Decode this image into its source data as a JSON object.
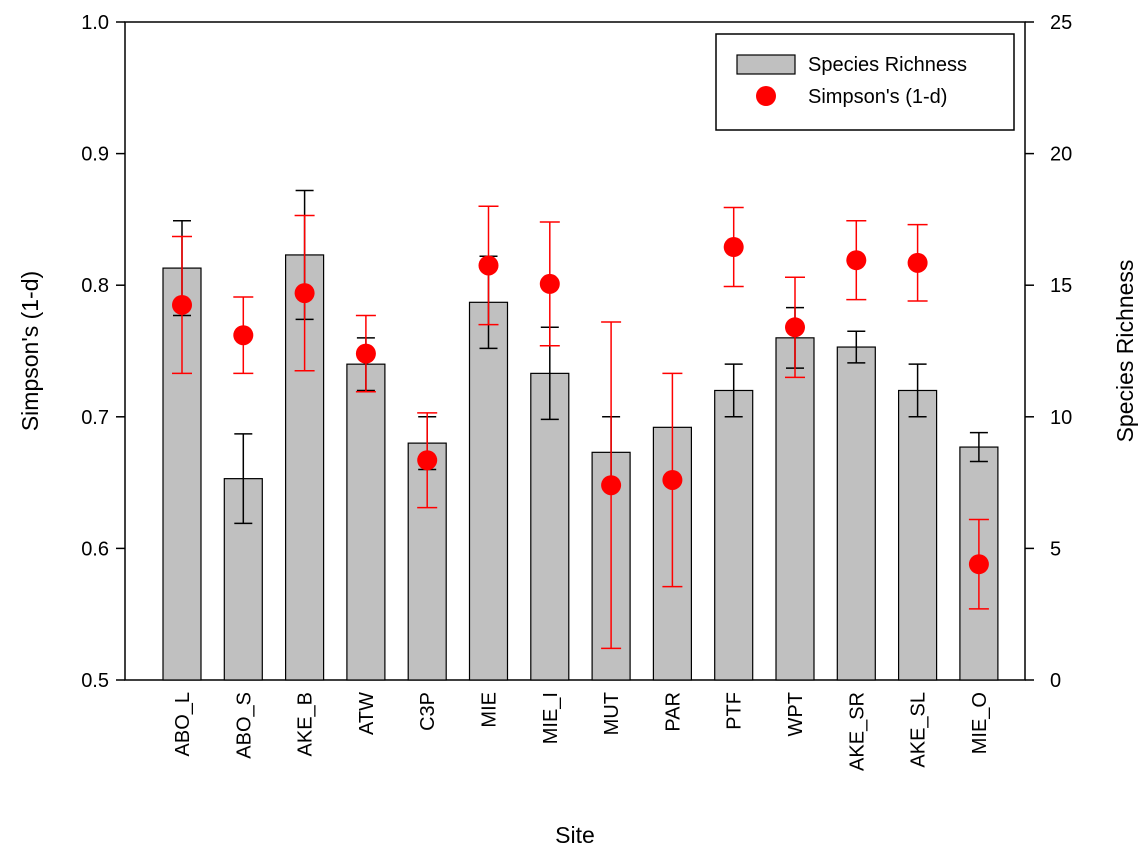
{
  "chart_data": {
    "type": "bar",
    "xlabel": "Site",
    "ylabel_left": "Simpson's (1-d)",
    "ylabel_right": "Species Richness",
    "ylim_left": [
      0.5,
      1.0
    ],
    "ylim_right": [
      0,
      25
    ],
    "yticks_left": [
      "0.5",
      "0.6",
      "0.7",
      "0.8",
      "0.9",
      "1.0"
    ],
    "yticks_right": [
      "0",
      "5",
      "10",
      "15",
      "20",
      "25"
    ],
    "grid": false,
    "legend_position": "top-right",
    "categories": [
      "ABO_L",
      "ABO_S",
      "AKE_B",
      "ATW",
      "C3P",
      "MIE",
      "MIE_I",
      "MUT",
      "PAR",
      "PTF",
      "WPT",
      "AKE_SR",
      "AKE_SL",
      "MIE_O"
    ],
    "series": [
      {
        "name": "Species Richness",
        "type": "bar",
        "axis": "right",
        "color": "#c0c0c0",
        "values": [
          15.65,
          7.65,
          16.15,
          12.0,
          9.0,
          14.35,
          11.65,
          8.65,
          9.6,
          11.0,
          13.0,
          12.65,
          11.0,
          8.85
        ],
        "error": [
          1.8,
          1.7,
          2.45,
          1.0,
          1.0,
          1.75,
          1.75,
          1.35,
          0,
          1.0,
          1.15,
          0.6,
          1.0,
          0.55
        ]
      },
      {
        "name": "Simpson's (1-d)",
        "type": "scatter",
        "axis": "left",
        "color": "#ff0000",
        "values": [
          0.785,
          0.762,
          0.794,
          0.748,
          0.667,
          0.815,
          0.801,
          0.648,
          0.652,
          0.829,
          0.768,
          0.819,
          0.817,
          0.588
        ],
        "error": [
          0.052,
          0.029,
          0.059,
          0.029,
          0.036,
          0.045,
          0.047,
          0.124,
          0.081,
          0.03,
          0.038,
          0.03,
          0.029,
          0.034
        ]
      }
    ]
  }
}
